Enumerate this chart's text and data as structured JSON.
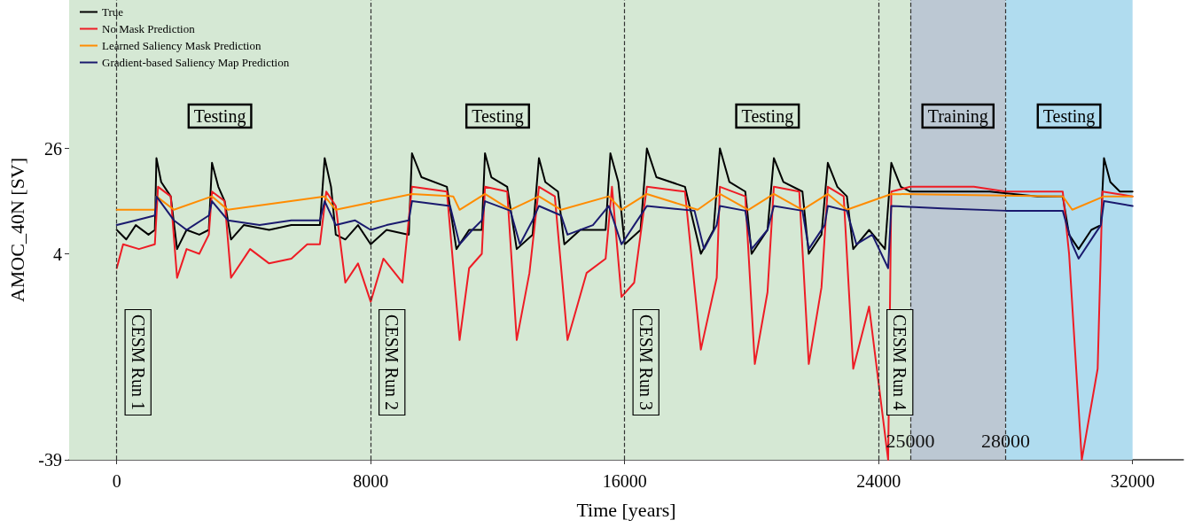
{
  "chart_data": {
    "type": "line",
    "xlabel": "Time [years]",
    "ylabel": "AMOC_40N [SV]",
    "xlim": [
      -1500,
      33600
    ],
    "xticks": [
      0,
      8000,
      16000,
      24000,
      32000
    ],
    "ylim": [
      -39,
      57
    ],
    "yticks": [
      -39,
      4,
      26
    ],
    "grid": false,
    "legend": "top left",
    "marker": "none",
    "line_style": "solid",
    "series": [
      {
        "name": "True",
        "color": "#000000",
        "x": [
          0,
          300,
          600,
          1000,
          1200,
          1250,
          1400,
          1700,
          1900,
          2200,
          2600,
          2900,
          3000,
          3200,
          3400,
          3600,
          4000,
          4800,
          5500,
          6400,
          6550,
          6750,
          6900,
          7200,
          7600,
          8000,
          8500,
          9200,
          9300,
          9600,
          10400,
          10700,
          11100,
          11500,
          11600,
          11800,
          12300,
          12600,
          13100,
          13300,
          13500,
          13900,
          14100,
          14600,
          15400,
          15550,
          15800,
          16000,
          16500,
          16700,
          17000,
          17900,
          18400,
          18800,
          19000,
          19300,
          19800,
          20000,
          20500,
          20700,
          21000,
          21600,
          21800,
          22200,
          22400,
          22700,
          23000,
          23200,
          23700,
          24200,
          24400,
          24700,
          25000,
          26000,
          27500,
          29000,
          29800,
          30000,
          30300,
          30700,
          31000,
          31100,
          31300,
          31600,
          32000
        ],
        "values": [
          9,
          7,
          10,
          8,
          9,
          24,
          19,
          16,
          5,
          9,
          8,
          9,
          23,
          18,
          15,
          7,
          10,
          9,
          10,
          10,
          24,
          18,
          8,
          7,
          10,
          6,
          9,
          8,
          25,
          20,
          18,
          5,
          9,
          9,
          25,
          20,
          18,
          5,
          8,
          24,
          19,
          17,
          6,
          9,
          9,
          25,
          19,
          6,
          9,
          26,
          20,
          18,
          4,
          9,
          26,
          19,
          17,
          4,
          9,
          24,
          19,
          17,
          4,
          8,
          23,
          18,
          16,
          5,
          9,
          5,
          23,
          18,
          17,
          17,
          17,
          16,
          16,
          8,
          5,
          9,
          10,
          24,
          19,
          17,
          17
        ]
      },
      {
        "name": "No Mask Prediction",
        "color": "#ee1c25",
        "x": [
          0,
          200,
          700,
          1200,
          1300,
          1700,
          1900,
          2200,
          2600,
          2900,
          3000,
          3400,
          3600,
          4200,
          4800,
          5500,
          6000,
          6400,
          6600,
          6900,
          7200,
          7600,
          8000,
          8400,
          9000,
          9300,
          10400,
          10800,
          11100,
          11500,
          11600,
          12300,
          12600,
          13000,
          13300,
          13800,
          14200,
          14800,
          15400,
          15600,
          15900,
          16300,
          16700,
          17900,
          18400,
          18900,
          19000,
          19800,
          20100,
          20500,
          20700,
          21500,
          21800,
          22200,
          22400,
          22900,
          23200,
          23700,
          24300,
          24400,
          25000,
          27000,
          28000,
          29800,
          30000,
          30400,
          30900,
          31050,
          32000
        ],
        "values": [
          1,
          6,
          5,
          6,
          18,
          16,
          -1,
          5,
          4,
          8,
          17,
          15,
          -1,
          5,
          2,
          3,
          6,
          6,
          17,
          14,
          -2,
          2,
          -6,
          3,
          -2,
          18,
          17,
          -14,
          1,
          4,
          18,
          17,
          -14,
          0,
          18,
          16,
          -14,
          0,
          3,
          18,
          -5,
          -2,
          18,
          17,
          -16,
          -1,
          18,
          16,
          -19,
          -4,
          18,
          17,
          -19,
          -3,
          18,
          16,
          -20,
          -7,
          -39,
          17,
          18,
          18,
          17,
          17,
          4,
          -39,
          -20,
          17,
          16
        ]
      },
      {
        "name": "Learned Saliency Mask Prediction",
        "color": "#ff8c00",
        "x": [
          0,
          1200,
          1250,
          1800,
          3000,
          3500,
          6550,
          6900,
          9300,
          10600,
          10800,
          11600,
          12400,
          13300,
          14000,
          15500,
          15900,
          16700,
          18300,
          19000,
          19900,
          20700,
          21600,
          22400,
          23000,
          24400,
          29800,
          30100,
          31100,
          32000
        ],
        "values": [
          13.2,
          13.2,
          16,
          13.2,
          16,
          13.2,
          16,
          13.2,
          16.5,
          16,
          13.2,
          16.5,
          13.2,
          16,
          13.2,
          16,
          13.2,
          16.5,
          13.2,
          16.5,
          13.2,
          16.5,
          13.2,
          16.5,
          13.2,
          16.5,
          16,
          13.2,
          16,
          16
        ]
      },
      {
        "name": "Gradient-based Saliency Map Prediction",
        "color": "#1a1a6e",
        "x": [
          0,
          600,
          1200,
          1250,
          1800,
          2200,
          2900,
          3000,
          3500,
          4500,
          5500,
          6400,
          6550,
          6900,
          7500,
          8000,
          8500,
          9200,
          9300,
          10500,
          10800,
          11200,
          11500,
          11600,
          12400,
          12700,
          13100,
          13300,
          14000,
          14200,
          15000,
          15500,
          15900,
          16300,
          16700,
          18200,
          18500,
          18900,
          19000,
          19800,
          20000,
          20500,
          20700,
          21600,
          21800,
          22300,
          22400,
          23000,
          23300,
          23800,
          24300,
          24400,
          26000,
          28000,
          29800,
          30100,
          30300,
          30800,
          31000,
          31100,
          32000
        ],
        "values": [
          10,
          11,
          12,
          16,
          11,
          9,
          12,
          15,
          11,
          10,
          11,
          11,
          15,
          10,
          11,
          9,
          10,
          11,
          15,
          14,
          6,
          9,
          11,
          15,
          13,
          6,
          11,
          14,
          12,
          8,
          10,
          14,
          6,
          10,
          14,
          13,
          5,
          10,
          14,
          13,
          5,
          9,
          14,
          13,
          5,
          10,
          14,
          13,
          6,
          8,
          1,
          14,
          13.5,
          13,
          13,
          6,
          3,
          8,
          10,
          15,
          14
        ]
      }
    ],
    "bands": [
      {
        "axis": "x",
        "from": -1500,
        "to": 8000,
        "label": "Testing",
        "color": "#d5e8d4"
      },
      {
        "axis": "x",
        "from": 8000,
        "to": 16000,
        "label": "Testing",
        "color": "#d5e8d4"
      },
      {
        "axis": "x",
        "from": 16000,
        "to": 25000,
        "label": "Testing",
        "color": "#d5e8d4"
      },
      {
        "axis": "x",
        "from": 25000,
        "to": 28000,
        "label": "Training",
        "color": "#bcc8d3"
      },
      {
        "axis": "x",
        "from": 28000,
        "to": 32000,
        "label": "Testing",
        "color": "#b0dcef"
      }
    ],
    "ref_lines": [
      {
        "axis": "x",
        "value": 0,
        "label": "CESM Run 1",
        "color": "#333333",
        "line_style": "dashed"
      },
      {
        "axis": "x",
        "value": 8000,
        "label": "CESM Run 2",
        "color": "#333333",
        "line_style": "dashed"
      },
      {
        "axis": "x",
        "value": 16000,
        "label": "CESM Run 3",
        "color": "#333333",
        "line_style": "dashed"
      },
      {
        "axis": "x",
        "value": 24000,
        "label": "CESM Run 4",
        "color": "#333333",
        "line_style": "dashed"
      },
      {
        "axis": "x",
        "value": 25000,
        "color": "#333333",
        "line_style": "dashed"
      },
      {
        "axis": "x",
        "value": 28000,
        "color": "#333333",
        "line_style": "dashed"
      }
    ],
    "annotations": [
      {
        "text": "25000",
        "x": 25000,
        "y": -35
      },
      {
        "text": "28000",
        "x": 28000,
        "y": -35
      }
    ]
  }
}
